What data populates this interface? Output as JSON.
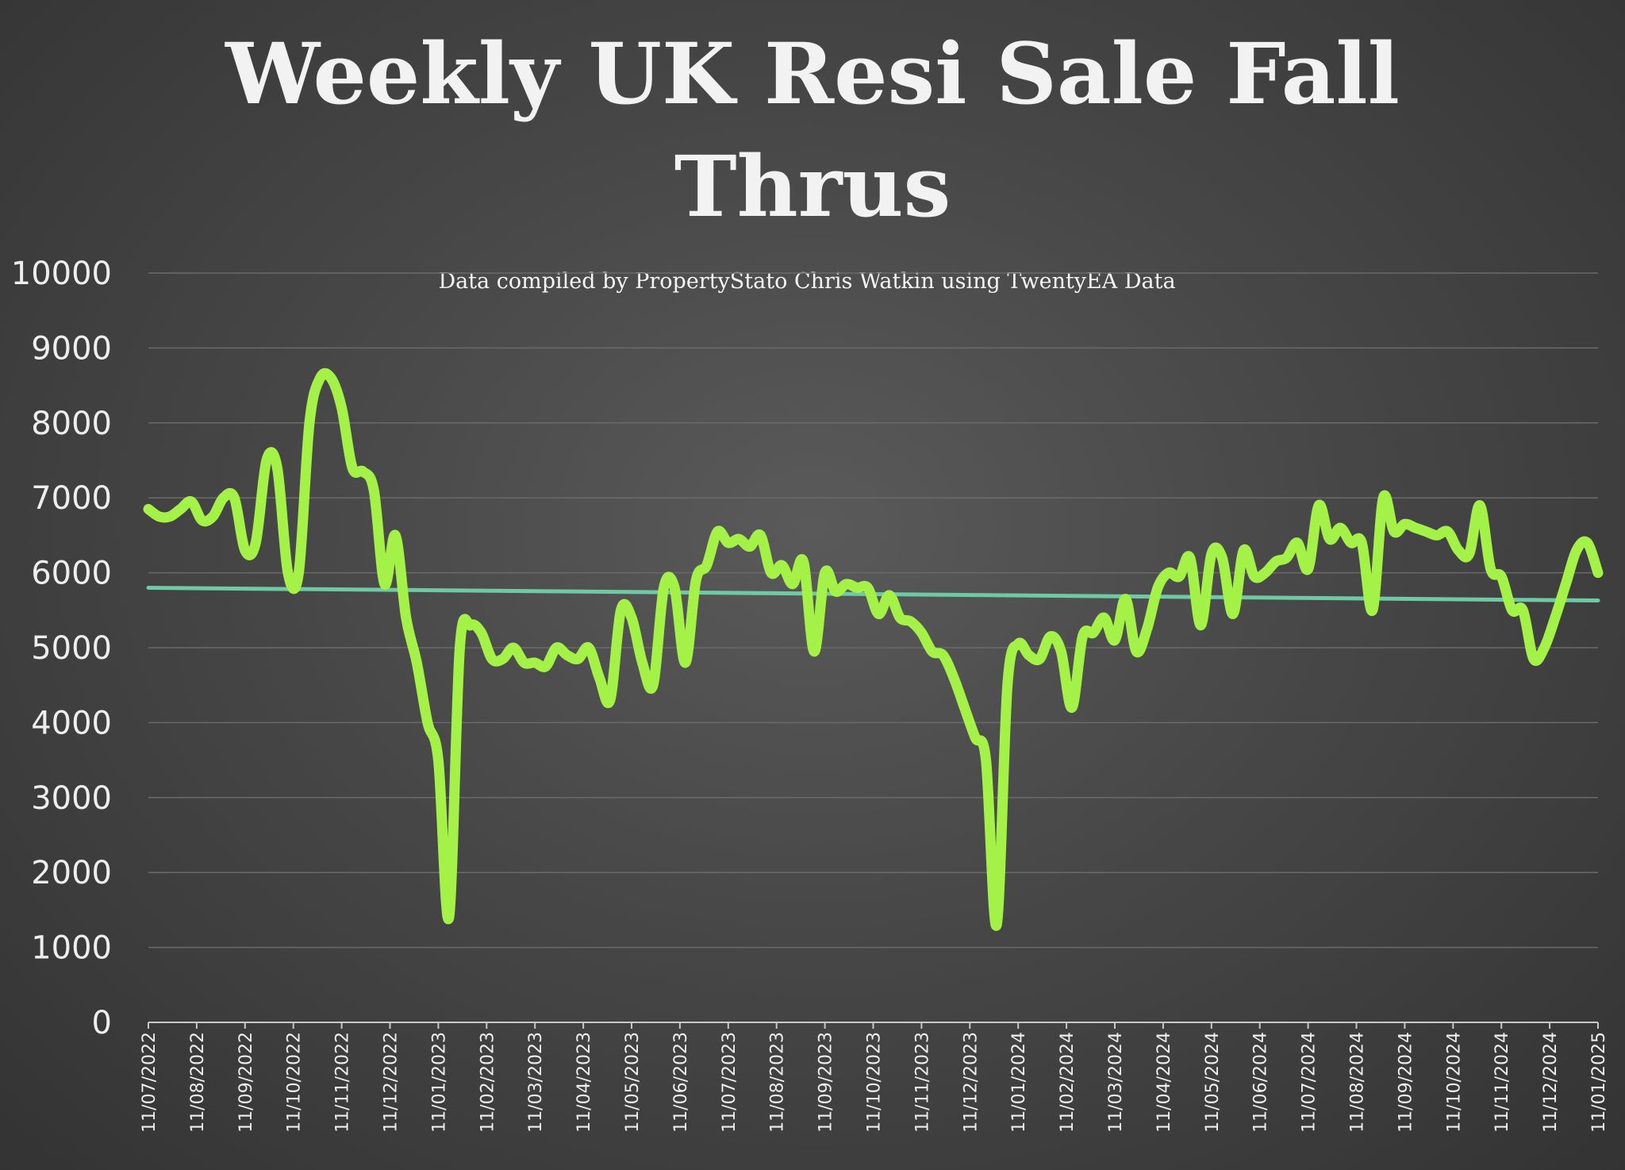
{
  "chart_data": {
    "type": "line",
    "title_lines": [
      "Weekly UK Resi Sale Fall",
      "Thrus"
    ],
    "subtitle": "Data compiled by PropertyStato Chris Watkin using TwentyEA Data",
    "ylim": [
      0,
      10000
    ],
    "yticks": [
      "0",
      "1000",
      "2000",
      "3000",
      "4000",
      "5000",
      "6000",
      "7000",
      "8000",
      "9000",
      "10000"
    ],
    "xticks": [
      "11/07/2022",
      "11/08/2022",
      "11/09/2022",
      "11/10/2022",
      "11/11/2022",
      "11/12/2022",
      "11/01/2023",
      "11/02/2023",
      "11/03/2023",
      "11/04/2023",
      "11/05/2023",
      "11/06/2023",
      "11/07/2023",
      "11/08/2023",
      "11/09/2023",
      "11/10/2023",
      "11/11/2023",
      "11/12/2023",
      "11/01/2024",
      "11/02/2024",
      "11/03/2024",
      "11/04/2024",
      "11/05/2024",
      "11/06/2024",
      "11/07/2024",
      "11/08/2024",
      "11/09/2024",
      "11/10/2024",
      "11/11/2024",
      "11/12/2024",
      "11/01/2025"
    ],
    "grid": true,
    "colors": {
      "series": "#a4f247",
      "trend": "#6fc9a4"
    },
    "series": [
      {
        "values": [
          6850,
          6750,
          6750,
          6850,
          6950,
          6700,
          6750,
          7000,
          7000,
          6300,
          6400,
          7500,
          7400,
          6000,
          6000,
          8000,
          8600,
          8600,
          8200,
          7400,
          7350,
          7100,
          5850,
          6500,
          5400,
          4800,
          4000,
          3500,
          1400,
          5000,
          5300,
          5200,
          4850,
          4850,
          5000,
          4800,
          4800,
          4750,
          5000,
          4900,
          4850,
          5000,
          4600,
          4300,
          5500,
          5400,
          4800,
          4500,
          5800,
          5800,
          4800,
          5900,
          6100,
          6550,
          6400,
          6450,
          6350,
          6500,
          6000,
          6100,
          5850,
          6150,
          4950,
          6000,
          5750,
          5850,
          5800,
          5800,
          5450,
          5700,
          5400,
          5350,
          5200,
          4950,
          4900,
          4600,
          4200,
          3800,
          3500,
          1300,
          4500,
          5050,
          4900,
          4850,
          5150,
          4950,
          4200,
          5150,
          5200,
          5400,
          5100,
          5650,
          4950,
          5250,
          5800,
          6000,
          5950,
          6200,
          5300,
          6250,
          6200,
          5450,
          6300,
          5950,
          6000,
          6150,
          6200,
          6400,
          6050,
          6900,
          6450,
          6600,
          6400,
          6400,
          5500,
          7000,
          6550,
          6650,
          6600,
          6550,
          6500,
          6550,
          6300,
          6250,
          6900,
          6050,
          5950,
          5500,
          5500,
          4850,
          5000,
          5400,
          5850,
          6300,
          6400,
          6000
        ]
      }
    ],
    "trend": {
      "start": 5800,
      "end": 5630
    }
  }
}
